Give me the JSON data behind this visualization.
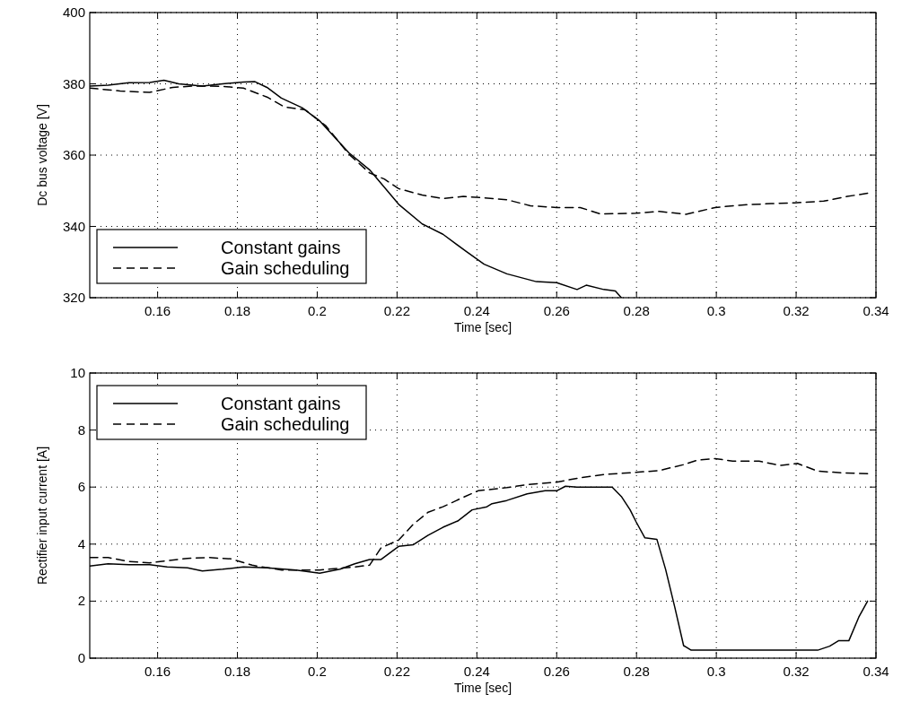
{
  "chart_data": [
    {
      "type": "line",
      "xlabel": "Time [sec]",
      "ylabel": "Dc bus voltage [V]",
      "xlim": [
        0.143,
        0.34
      ],
      "xticks": [
        0.16,
        0.18,
        0.2,
        0.22,
        0.24,
        0.26,
        0.28,
        0.3,
        0.32,
        0.34
      ],
      "ylim": [
        320,
        400
      ],
      "yticks": [
        320,
        340,
        360,
        380,
        400
      ],
      "grid": true,
      "legend": "bottom left",
      "series": [
        {
          "name": "Constant gains",
          "color": "#000000",
          "line_style": "solid",
          "x": [
            0.143,
            0.1476,
            0.1528,
            0.158,
            0.1616,
            0.1653,
            0.1712,
            0.1763,
            0.1815,
            0.1844,
            0.1874,
            0.191,
            0.1962,
            0.2006,
            0.2079,
            0.2131,
            0.2168,
            0.2204,
            0.2263,
            0.2315,
            0.2374,
            0.2418,
            0.2475,
            0.2549,
            0.26,
            0.2651,
            0.2674,
            0.2718,
            0.2747,
            0.2762
          ],
          "values": [
            379.4,
            379.6,
            380.3,
            380.4,
            381,
            380,
            379.4,
            380,
            380.5,
            380.6,
            379,
            376,
            373.3,
            369.6,
            360.7,
            355.9,
            351,
            346.2,
            340.7,
            337.8,
            332.9,
            329.4,
            326.7,
            324.5,
            324.2,
            322.3,
            323.5,
            322.3,
            321.9,
            320
          ]
        },
        {
          "name": "Gain scheduling",
          "color": "#000000",
          "line_style": "dashed",
          "x": [
            0.143,
            0.1506,
            0.158,
            0.1638,
            0.169,
            0.1763,
            0.1815,
            0.1874,
            0.1918,
            0.197,
            0.2021,
            0.2079,
            0.2131,
            0.2168,
            0.2204,
            0.2263,
            0.2315,
            0.2366,
            0.2418,
            0.2475,
            0.2534,
            0.26,
            0.2659,
            0.271,
            0.2799,
            0.2857,
            0.2924,
            0.2997,
            0.3063,
            0.3137,
            0.3196,
            0.3269,
            0.3328,
            0.3379
          ],
          "values": [
            378.8,
            378,
            377.6,
            379,
            379.4,
            379.3,
            378.8,
            376.3,
            373.5,
            372.7,
            368.3,
            360.3,
            355,
            353.3,
            350.6,
            348.8,
            347.8,
            348.4,
            348,
            347.5,
            345.8,
            345.3,
            345.3,
            343.5,
            343.7,
            344.2,
            343.4,
            345.3,
            346,
            346.4,
            346.6,
            347.1,
            348.4,
            349.3
          ]
        }
      ]
    },
    {
      "type": "line",
      "xlabel": "Time [sec]",
      "ylabel": "Rectifier input current [A]",
      "xlim": [
        0.143,
        0.34
      ],
      "xticks": [
        0.16,
        0.18,
        0.2,
        0.22,
        0.24,
        0.26,
        0.28,
        0.3,
        0.32,
        0.34
      ],
      "ylim": [
        0,
        10
      ],
      "yticks": [
        0,
        2,
        4,
        6,
        8,
        10
      ],
      "grid": true,
      "legend": "top left",
      "series": [
        {
          "name": "Constant gains",
          "color": "#000000",
          "line_style": "solid",
          "x": [
            0.143,
            0.1476,
            0.1528,
            0.158,
            0.1624,
            0.1675,
            0.1712,
            0.1763,
            0.1815,
            0.1874,
            0.1947,
            0.2006,
            0.2057,
            0.2094,
            0.2131,
            0.216,
            0.2204,
            0.2241,
            0.2278,
            0.2315,
            0.2352,
            0.2388,
            0.2425,
            0.2438,
            0.2475,
            0.2526,
            0.2571,
            0.26,
            0.2622,
            0.2651,
            0.2739,
            0.2762,
            0.2784,
            0.2799,
            0.2821,
            0.2851,
            0.2873,
            0.2896,
            0.2918,
            0.2937,
            0.3,
            0.31,
            0.32,
            0.3254,
            0.3284,
            0.3306,
            0.3332,
            0.3357,
            0.3379
          ],
          "values": [
            3.23,
            3.31,
            3.28,
            3.28,
            3.2,
            3.17,
            3.06,
            3.12,
            3.2,
            3.17,
            3.09,
            2.98,
            3.12,
            3.31,
            3.46,
            3.46,
            3.92,
            3.98,
            4.31,
            4.59,
            4.81,
            5.2,
            5.31,
            5.42,
            5.53,
            5.76,
            5.87,
            5.87,
            6.03,
            6,
            6,
            5.67,
            5.2,
            4.78,
            4.22,
            4.17,
            3.11,
            1.78,
            0.44,
            0.28,
            0.28,
            0.28,
            0.28,
            0.28,
            0.42,
            0.61,
            0.61,
            1.44,
            2
          ]
        },
        {
          "name": "Gain scheduling",
          "color": "#000000",
          "line_style": "dashed",
          "x": [
            0.143,
            0.1476,
            0.1528,
            0.158,
            0.1624,
            0.1675,
            0.1727,
            0.1785,
            0.1837,
            0.1911,
            0.2006,
            0.2094,
            0.2131,
            0.216,
            0.2204,
            0.2241,
            0.2278,
            0.2315,
            0.2366,
            0.2403,
            0.2475,
            0.2526,
            0.26,
            0.2659,
            0.2718,
            0.2784,
            0.2857,
            0.2916,
            0.2951,
            0.2997,
            0.3041,
            0.3107,
            0.3159,
            0.3203,
            0.3254,
            0.3313,
            0.3379
          ],
          "values": [
            3.53,
            3.53,
            3.39,
            3.34,
            3.42,
            3.5,
            3.53,
            3.48,
            3.26,
            3.09,
            3.09,
            3.2,
            3.26,
            3.87,
            4.14,
            4.7,
            5.12,
            5.31,
            5.64,
            5.87,
            5.98,
            6.09,
            6.17,
            6.33,
            6.44,
            6.5,
            6.58,
            6.78,
            6.94,
            7,
            6.91,
            6.91,
            6.76,
            6.83,
            6.56,
            6.5,
            6.47
          ]
        }
      ]
    }
  ]
}
